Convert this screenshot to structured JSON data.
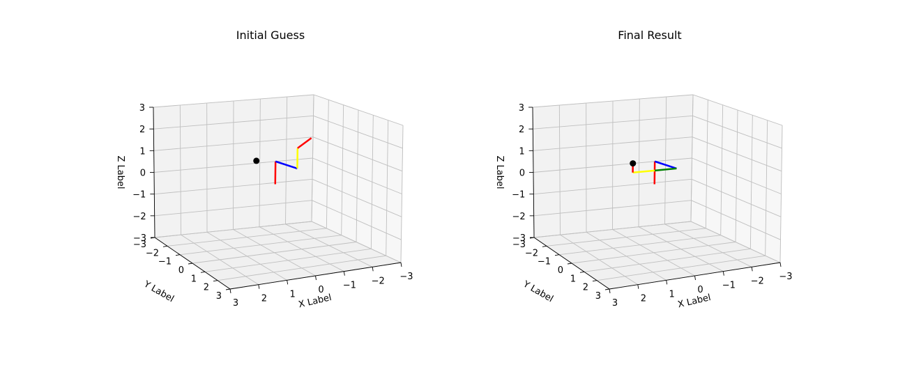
{
  "colors": {
    "pane_back": "#f2f2f2",
    "pane_side": "#f7f7f7",
    "pane_floor": "#f0f0f0",
    "grid": "#bfbfbf",
    "red": "#ff0000",
    "blue": "#0000ff",
    "yellow": "#ffff00",
    "green": "#008000",
    "point": "#000000"
  },
  "chart_data": [
    {
      "type": "3d-line",
      "title": "Initial Guess",
      "xlabel": "X Label",
      "ylabel": "Y Label",
      "zlabel": "Z Label",
      "xticks": [
        "3",
        "2",
        "1",
        "0",
        "−1",
        "−2",
        "−3"
      ],
      "yticks": [
        "−3",
        "−2",
        "−1",
        "0",
        "1",
        "2",
        "3"
      ],
      "zticks": [
        "−3",
        "−2",
        "−1",
        "0",
        "1",
        "2",
        "3"
      ],
      "xlim": [
        -3,
        3
      ],
      "ylim": [
        -3,
        3
      ],
      "zlim": [
        -3,
        3
      ],
      "grid": true,
      "segments": [
        {
          "color": "red",
          "x": [
            0,
            0
          ],
          "y": [
            0,
            0
          ],
          "z": [
            0,
            1
          ]
        },
        {
          "color": "blue",
          "x": [
            0,
            -0.8
          ],
          "y": [
            0,
            0
          ],
          "z": [
            1,
            0.6
          ]
        },
        {
          "color": "yellow",
          "x": [
            -0.8,
            -0.8
          ],
          "y": [
            0,
            0
          ],
          "z": [
            0.6,
            1.5
          ]
        },
        {
          "color": "red",
          "x": [
            -0.8,
            -1.3
          ],
          "y": [
            0,
            0
          ],
          "z": [
            1.5,
            1.9
          ]
        }
      ],
      "points": [
        {
          "color": "point",
          "x": 0.7,
          "y": 0,
          "z": 1.1
        }
      ]
    },
    {
      "type": "3d-line",
      "title": "Final Result",
      "xlabel": "X Label",
      "ylabel": "Y Label",
      "zlabel": "Z Label",
      "xticks": [
        "3",
        "2",
        "1",
        "0",
        "−1",
        "−2",
        "−3"
      ],
      "yticks": [
        "−3",
        "−2",
        "−1",
        "0",
        "1",
        "2",
        "3"
      ],
      "zticks": [
        "−3",
        "−2",
        "−1",
        "0",
        "1",
        "2",
        "3"
      ],
      "xlim": [
        -3,
        3
      ],
      "ylim": [
        -3,
        3
      ],
      "zlim": [
        -3,
        3
      ],
      "grid": true,
      "segments": [
        {
          "color": "red",
          "x": [
            0,
            0
          ],
          "y": [
            0,
            0
          ],
          "z": [
            0,
            1
          ]
        },
        {
          "color": "blue",
          "x": [
            0,
            -0.8
          ],
          "y": [
            0,
            0
          ],
          "z": [
            1,
            0.6
          ]
        },
        {
          "color": "green",
          "x": [
            -0.8,
            0
          ],
          "y": [
            0,
            0
          ],
          "z": [
            0.6,
            0.6
          ]
        },
        {
          "color": "yellow",
          "x": [
            0,
            0.8
          ],
          "y": [
            0,
            0
          ],
          "z": [
            0.6,
            0.6
          ]
        },
        {
          "color": "red",
          "x": [
            0.8,
            0.8
          ],
          "y": [
            0,
            0
          ],
          "z": [
            0.6,
            0.9
          ]
        }
      ],
      "points": [
        {
          "color": "point",
          "x": 0.8,
          "y": 0,
          "z": 1.0
        }
      ]
    }
  ]
}
